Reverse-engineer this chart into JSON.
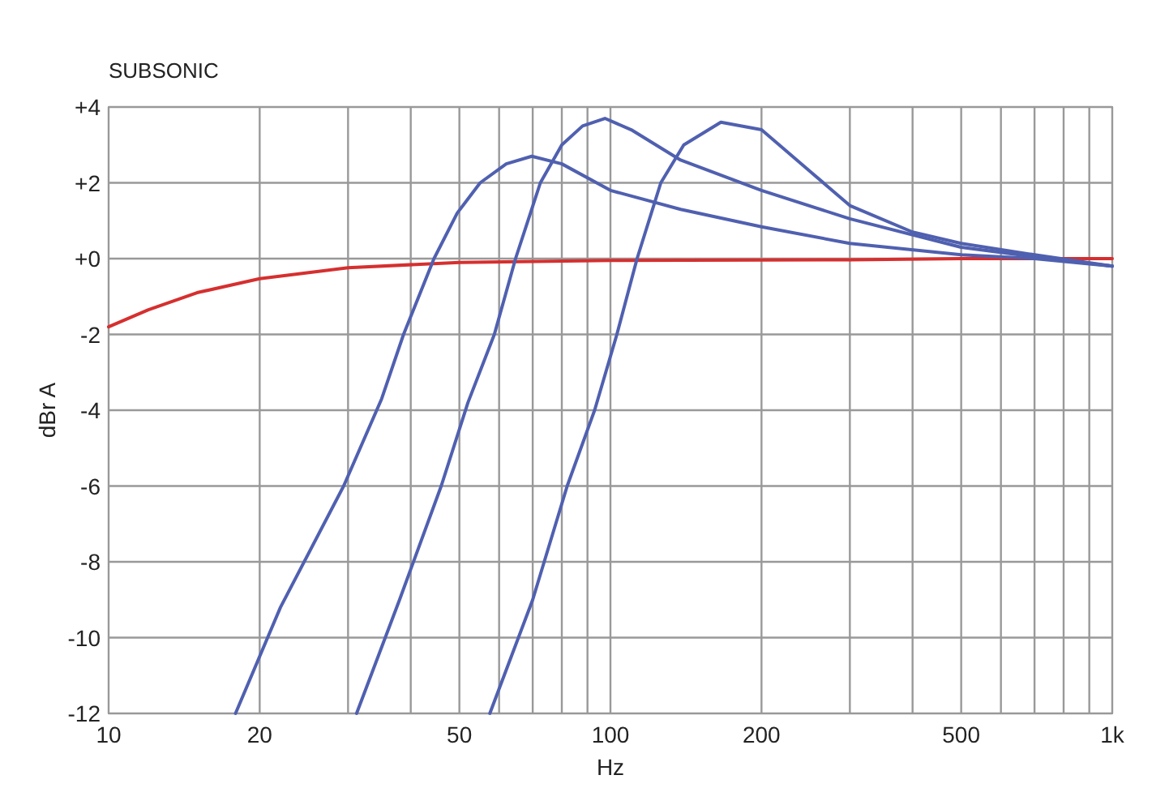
{
  "chart_data": {
    "type": "line",
    "title": "SUBSONIC",
    "xlabel": "Hz",
    "ylabel": "dBr A",
    "log": "x",
    "grid": true,
    "marker": "none",
    "line_style": "solid",
    "xlim": [
      10,
      1000
    ],
    "ylim": [
      -12,
      4
    ],
    "xticks": [
      10,
      20,
      {
        "value": 30,
        "label": null
      },
      {
        "value": 40,
        "label": null
      },
      50,
      {
        "value": 60,
        "label": null
      },
      {
        "value": 70,
        "label": null
      },
      {
        "value": 80,
        "label": null
      },
      {
        "value": 90,
        "label": null
      },
      100,
      200,
      {
        "value": 300,
        "label": null
      },
      {
        "value": 400,
        "label": null
      },
      500,
      {
        "value": 600,
        "label": null
      },
      {
        "value": 700,
        "label": null
      },
      {
        "value": 800,
        "label": null
      },
      {
        "value": 900,
        "label": null
      },
      {
        "value": 1000,
        "label": "1k"
      }
    ],
    "yticks": [
      {
        "value": 4,
        "label": "+4"
      },
      {
        "value": 2,
        "label": "+2"
      },
      {
        "value": 0,
        "label": "+0"
      },
      -2,
      -4,
      -6,
      -8,
      -10,
      -12
    ],
    "series": [
      {
        "color": "#d62f2f",
        "x": [
          10,
          12,
          15,
          20,
          30,
          50,
          100,
          300,
          500,
          1000
        ],
        "values": [
          -1.8,
          -1.35,
          -0.9,
          -0.53,
          -0.24,
          -0.1,
          -0.05,
          -0.03,
          0,
          0
        ]
      },
      {
        "color": "#5060b0",
        "x": [
          17.9,
          22,
          29.4,
          35,
          38.7,
          44.5,
          49.5,
          55,
          62,
          69.7,
          80,
          100,
          138,
          200,
          300,
          500,
          700,
          1000
        ],
        "values": [
          -12,
          -9.2,
          -6,
          -3.7,
          -2,
          0,
          1.2,
          2,
          2.5,
          2.7,
          2.5,
          1.8,
          1.3,
          0.84,
          0.4,
          0.1,
          0,
          -0.2
        ]
      },
      {
        "color": "#5060b0",
        "x": [
          31.2,
          38,
          46,
          52,
          58.7,
          64.7,
          72.5,
          80,
          88,
          97.5,
          110,
          138,
          200,
          300,
          500,
          700,
          1000
        ],
        "values": [
          -12,
          -9,
          -6,
          -3.8,
          -2,
          0,
          2,
          3,
          3.5,
          3.7,
          3.4,
          2.6,
          1.8,
          1.05,
          0.3,
          0.05,
          -0.2
        ]
      },
      {
        "color": "#5060b0",
        "x": [
          57.5,
          70,
          82,
          93,
          103,
          113,
          126,
          140,
          166,
          200,
          250,
          300,
          400,
          500,
          700,
          1000
        ],
        "values": [
          -12,
          -9,
          -6,
          -4,
          -2,
          0,
          2,
          3,
          3.6,
          3.4,
          2.3,
          1.4,
          0.7,
          0.4,
          0.1,
          -0.2
        ]
      }
    ]
  }
}
